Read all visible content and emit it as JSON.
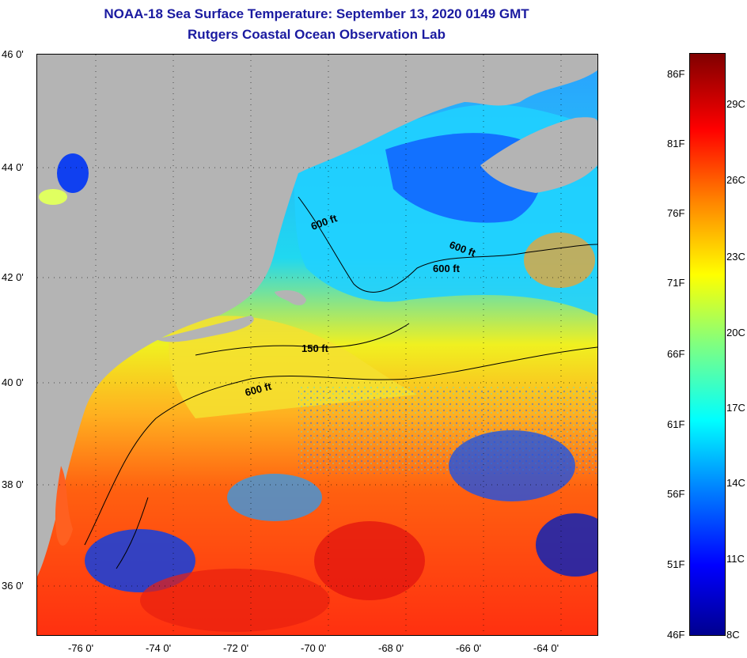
{
  "header": {
    "title": "NOAA-18 Sea Surface Temperature:  September 13, 2020 0149 GMT",
    "subtitle": "Rutgers Coastal Ocean Observation Lab"
  },
  "map": {
    "lat_labels": [
      "46 0'",
      "44 0'",
      "42 0'",
      "40 0'",
      "38 0'",
      "36 0'"
    ],
    "lon_labels": [
      "-76 0'",
      "-74 0'",
      "-72 0'",
      "-70 0'",
      "-68 0'",
      "-66 0'",
      "-64 0'"
    ],
    "contour_labels": [
      "600 ft",
      "600 ft",
      "600 ft",
      "150 ft",
      "600 ft"
    ],
    "land_color": "#b4b4b4"
  },
  "colorbar": {
    "fahrenheit_labels": [
      "86F",
      "81F",
      "76F",
      "71F",
      "66F",
      "61F",
      "56F",
      "51F",
      "46F"
    ],
    "celsius_labels": [
      "29C",
      "26C",
      "23C",
      "20C",
      "17C",
      "14C",
      "11C",
      "8C"
    ],
    "colors": [
      "#00008f",
      "#0000ff",
      "#0080ff",
      "#00ffff",
      "#80ff80",
      "#ffff00",
      "#ff8000",
      "#ff0000",
      "#800000"
    ]
  }
}
